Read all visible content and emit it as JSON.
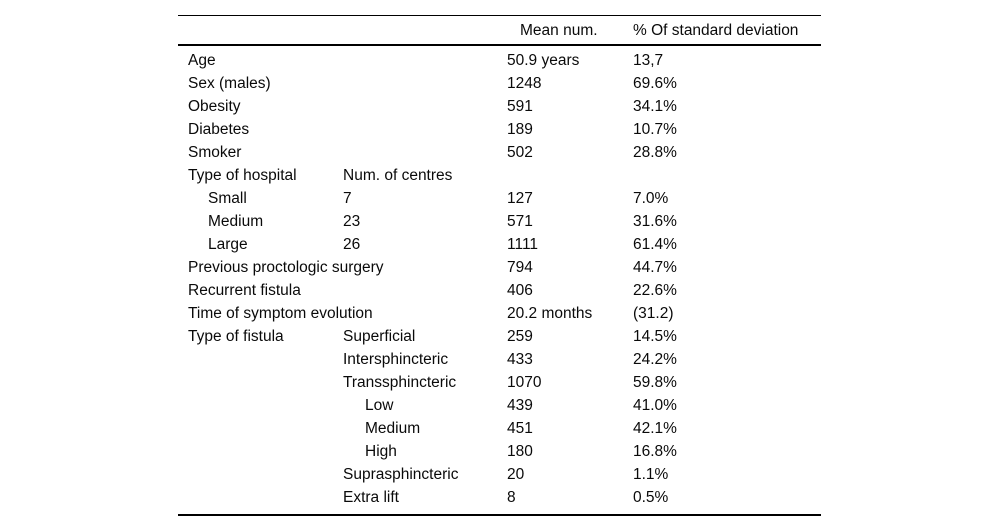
{
  "colors": {
    "background": "#ffffff",
    "text": "#0a0a0a",
    "rule": "#000000"
  },
  "table": {
    "headers": {
      "label": "",
      "sub": "",
      "mean": "Mean num.",
      "std": "% Of standard deviation"
    },
    "rows": [
      {
        "label": "Age",
        "sub": "",
        "mean": "50.9 years",
        "pct": "13,7",
        "indent": 0,
        "sub_indent": 0
      },
      {
        "label": "Sex (males)",
        "sub": "",
        "mean": "1248",
        "pct": "69.6%",
        "indent": 0,
        "sub_indent": 0
      },
      {
        "label": "Obesity",
        "sub": "",
        "mean": "591",
        "pct": "34.1%",
        "indent": 0,
        "sub_indent": 0
      },
      {
        "label": "Diabetes",
        "sub": "",
        "mean": "189",
        "pct": "10.7%",
        "indent": 0,
        "sub_indent": 0
      },
      {
        "label": "Smoker",
        "sub": "",
        "mean": "502",
        "pct": "28.8%",
        "indent": 0,
        "sub_indent": 0
      },
      {
        "label": "Type of hospital",
        "sub": "Num. of centres",
        "mean": "",
        "pct": "",
        "indent": 0,
        "sub_indent": 0
      },
      {
        "label": "Small",
        "sub": "7",
        "mean": "127",
        "pct": "7.0%",
        "indent": 1,
        "sub_indent": 0
      },
      {
        "label": "Medium",
        "sub": "23",
        "mean": "571",
        "pct": "31.6%",
        "indent": 1,
        "sub_indent": 0
      },
      {
        "label": "Large",
        "sub": "26",
        "mean": "1111",
        "pct": "61.4%",
        "indent": 1,
        "sub_indent": 0
      },
      {
        "label": "Previous proctologic surgery",
        "sub": "",
        "mean": "794",
        "pct": "44.7%",
        "indent": 0,
        "sub_indent": 0
      },
      {
        "label": "Recurrent fistula",
        "sub": "",
        "mean": "406",
        "pct": "22.6%",
        "indent": 0,
        "sub_indent": 0
      },
      {
        "label": "Time of symptom evolution",
        "sub": "",
        "mean": "20.2 months",
        "pct": "(31.2)",
        "indent": 0,
        "sub_indent": 0
      },
      {
        "label": "Type of fistula",
        "sub": "Superficial",
        "mean": "259",
        "pct": "14.5%",
        "indent": 0,
        "sub_indent": 0
      },
      {
        "label": "",
        "sub": "Intersphincteric",
        "mean": "433",
        "pct": "24.2%",
        "indent": 0,
        "sub_indent": 0
      },
      {
        "label": "",
        "sub": "Transsphincteric",
        "mean": "1070",
        "pct": "59.8%",
        "indent": 0,
        "sub_indent": 0
      },
      {
        "label": "",
        "sub": "Low",
        "mean": "439",
        "pct": "41.0%",
        "indent": 0,
        "sub_indent": 1
      },
      {
        "label": "",
        "sub": "Medium",
        "mean": "451",
        "pct": "42.1%",
        "indent": 0,
        "sub_indent": 1
      },
      {
        "label": "",
        "sub": "High",
        "mean": "180",
        "pct": "16.8%",
        "indent": 0,
        "sub_indent": 1
      },
      {
        "label": "",
        "sub": "Suprasphincteric",
        "mean": "20",
        "pct": "1.1%",
        "indent": 0,
        "sub_indent": 0
      },
      {
        "label": "",
        "sub": "Extra lift",
        "mean": "8",
        "pct": "0.5%",
        "indent": 0,
        "sub_indent": 0
      }
    ]
  }
}
